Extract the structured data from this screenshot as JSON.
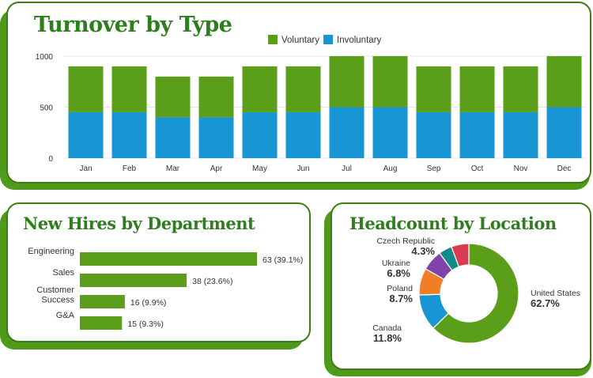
{
  "colors": {
    "voluntary": "#5b9e1a",
    "involuntary": "#1895d3",
    "hires_bar": "#5b9e1a",
    "title": "#2e7d1e",
    "card_shadow": "#4f9a1a",
    "card_border": "#3e7d12"
  },
  "turnover": {
    "title": "Turnover by Type",
    "chart_data": {
      "type": "bar",
      "stacked": true,
      "categories": [
        "Jan",
        "Feb",
        "Mar",
        "Apr",
        "May",
        "Jun",
        "Jul",
        "Aug",
        "Sep",
        "Oct",
        "Nov",
        "Dec"
      ],
      "series": [
        {
          "name": "Involuntary",
          "values": [
            450,
            450,
            400,
            400,
            450,
            450,
            500,
            500,
            450,
            450,
            450,
            500
          ]
        },
        {
          "name": "Voluntary",
          "values": [
            450,
            450,
            400,
            400,
            450,
            450,
            500,
            500,
            450,
            450,
            450,
            500
          ]
        }
      ],
      "legend": [
        "Voluntary",
        "Involuntary"
      ],
      "legend_position": "top-right",
      "yticks": [
        "0",
        "500",
        "1000"
      ],
      "ylim": [
        0,
        1000
      ],
      "grid": true
    }
  },
  "new_hires": {
    "title": "New Hires by Department",
    "chart_data": {
      "type": "bar",
      "orientation": "horizontal",
      "categories": [
        [
          "Engineering"
        ],
        [
          "Sales"
        ],
        [
          "Customer",
          "Success"
        ],
        [
          "G&A"
        ]
      ],
      "values": [
        63,
        38,
        16,
        15
      ],
      "data_labels": [
        "63 (39.1%)",
        "38 (23.6%)",
        "16 (9.9%)",
        "15 (9.3%)"
      ]
    }
  },
  "headcount": {
    "title": "Headcount by Location",
    "chart_data": {
      "type": "pie",
      "donut": true,
      "slices": [
        {
          "name": "United States",
          "value": 62.7,
          "label": "62.7%",
          "color": "#5b9e1a"
        },
        {
          "name": "Canada",
          "value": 11.8,
          "label": "11.8%",
          "color": "#1895d3"
        },
        {
          "name": "Poland",
          "value": 8.7,
          "label": "8.7%",
          "color": "#f07e26"
        },
        {
          "name": "Ukraine",
          "value": 6.8,
          "label": "6.8%",
          "color": "#7e44a8"
        },
        {
          "name": "Czech Republic",
          "value": 4.3,
          "label": "4.3%",
          "color": "#138a8a"
        },
        {
          "name": "",
          "value": 5.7,
          "label": "",
          "color": "#d83b52"
        }
      ]
    }
  }
}
